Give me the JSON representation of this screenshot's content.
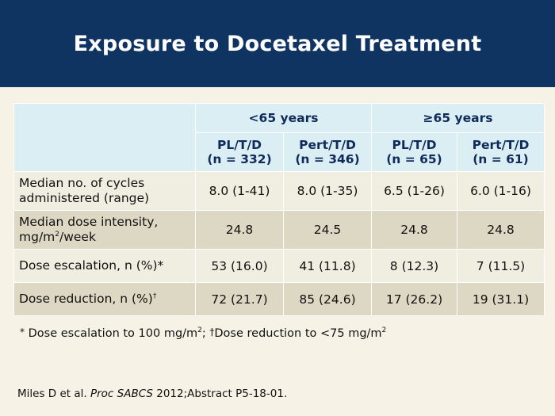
{
  "slide": {
    "title": "Exposure to Docetaxel Treatment"
  },
  "table": {
    "groups": [
      "<65 years",
      "≥65 years"
    ],
    "columns": [
      {
        "line1": "PL/T/D",
        "line2": "(n = 332)"
      },
      {
        "line1": "Pert/T/D",
        "line2": "(n = 346)"
      },
      {
        "line1": "PL/T/D",
        "line2": "(n = 65)"
      },
      {
        "line1": "Pert/T/D",
        "line2": "(n = 61)"
      }
    ],
    "rows": [
      {
        "label_line1": "Median no. of cycles",
        "label_line2": "administered (range)",
        "values": [
          "8.0 (1-41)",
          "8.0 (1-35)",
          "6.5 (1-26)",
          "6.0 (1-16)"
        ]
      },
      {
        "label_line1": "Median dose intensity,",
        "label_line2_pre": "mg/m",
        "label_line2_sup": "2",
        "label_line2_post": "/week",
        "values": [
          "24.8",
          "24.5",
          "24.8",
          "24.8"
        ]
      },
      {
        "label": "Dose escalation, n (%)*",
        "values": [
          "53 (16.0)",
          "41 (11.8)",
          "8 (12.3)",
          "7 (11.5)"
        ]
      },
      {
        "label": "Dose reduction, n (%)",
        "label_sup": "†",
        "values": [
          "72 (21.7)",
          "85 (24.6)",
          "17 (26.2)",
          "19 (31.1)"
        ]
      }
    ]
  },
  "footnote": {
    "mark1": "*",
    "text1": "Dose escalation to 100 mg/m",
    "sup1": "2",
    "sep": ";",
    "mark2": "†",
    "text2": "Dose reduction to <75 mg/m",
    "sup2": "2"
  },
  "citation": {
    "authors": "Miles D et al.",
    "journal": "Proc SABCS",
    "rest": "2012;Abstract P5-18-01."
  }
}
